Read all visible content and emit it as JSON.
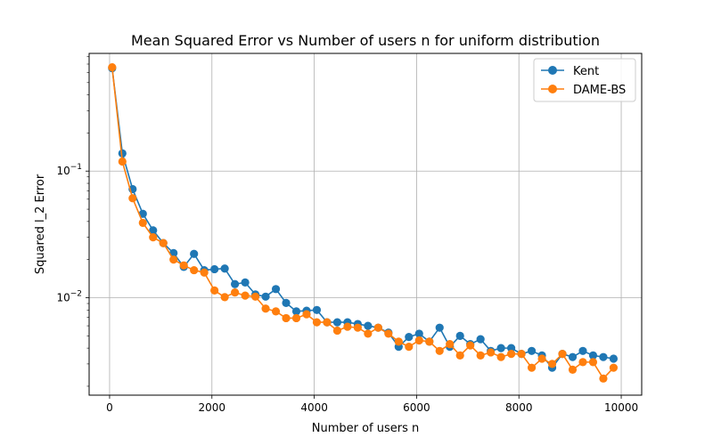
{
  "chart_data": {
    "type": "line",
    "title": "Mean Squared Error vs Number of users n for uniform distribution",
    "xlabel": "Number of users n",
    "ylabel": "Squared l_2 Error",
    "xlim": [
      -400,
      10400
    ],
    "ylim": [
      0.0017,
      0.85
    ],
    "yscale": "log",
    "grid": true,
    "legend_position": "top-right",
    "x_ticks": [
      0,
      2000,
      4000,
      6000,
      8000,
      10000
    ],
    "x_tick_labels": [
      "0",
      "2000",
      "4000",
      "6000",
      "8000",
      "10000"
    ],
    "y_major_ticks": [
      0.01,
      0.1
    ],
    "y_tick_labels": [
      {
        "base": "10",
        "exp": "−2"
      },
      {
        "base": "10",
        "exp": "−1"
      }
    ],
    "x": [
      50,
      250,
      450,
      650,
      850,
      1050,
      1250,
      1450,
      1650,
      1850,
      2050,
      2250,
      2450,
      2650,
      2850,
      3050,
      3250,
      3450,
      3650,
      3850,
      4050,
      4250,
      4450,
      4650,
      4850,
      5050,
      5250,
      5450,
      5650,
      5850,
      6050,
      6250,
      6450,
      6650,
      6850,
      7050,
      7250,
      7450,
      7650,
      7850,
      8050,
      8250,
      8450,
      8650,
      8850,
      9050,
      9250,
      9450,
      9650,
      9850
    ],
    "series": [
      {
        "name": "Kent",
        "color": "#1f77b4",
        "values": [
          0.65,
          0.138,
          0.072,
          0.046,
          0.034,
          0.027,
          0.0225,
          0.0175,
          0.0222,
          0.0165,
          0.0168,
          0.017,
          0.0128,
          0.0132,
          0.0106,
          0.0102,
          0.0117,
          0.0091,
          0.0078,
          0.0079,
          0.008,
          0.0064,
          0.0064,
          0.0064,
          0.0062,
          0.006,
          0.0058,
          0.0053,
          0.0041,
          0.0049,
          0.0052,
          0.0045,
          0.0058,
          0.0041,
          0.005,
          0.0043,
          0.0047,
          0.0038,
          0.004,
          0.004,
          0.0036,
          0.0038,
          0.0035,
          0.0028,
          0.0036,
          0.0034,
          0.0038,
          0.0035,
          0.0034,
          0.0033
        ]
      },
      {
        "name": "DAME-BS",
        "color": "#ff7f0e",
        "values": [
          0.66,
          0.119,
          0.061,
          0.039,
          0.03,
          0.027,
          0.02,
          0.018,
          0.0165,
          0.0158,
          0.0114,
          0.0101,
          0.011,
          0.0104,
          0.0102,
          0.0082,
          0.0078,
          0.0069,
          0.0069,
          0.0074,
          0.0064,
          0.0064,
          0.0055,
          0.0059,
          0.0058,
          0.0052,
          0.0058,
          0.0052,
          0.0045,
          0.0041,
          0.0046,
          0.0045,
          0.0038,
          0.0043,
          0.0035,
          0.0042,
          0.0035,
          0.0037,
          0.0034,
          0.0036,
          0.0036,
          0.0028,
          0.0033,
          0.003,
          0.0036,
          0.0027,
          0.0031,
          0.0031,
          0.0023,
          0.0028
        ]
      }
    ]
  }
}
